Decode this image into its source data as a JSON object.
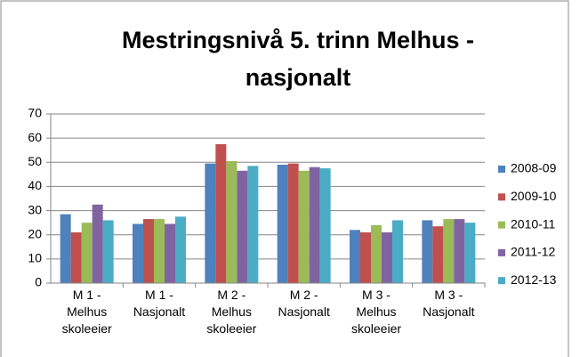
{
  "chart_data": {
    "type": "bar",
    "title": "Mestringsnivå 5. trinn Melhus - nasjonalt",
    "categories": [
      "M 1 - Melhus skoleeier",
      "M 1 - Nasjonalt",
      "M 2 - Melhus skoleeier",
      "M 2 - Nasjonalt",
      "M 3 - Melhus skoleeier",
      "M 3 - Nasjonalt"
    ],
    "series": [
      {
        "name": "2008-09",
        "color": "#4f81bd",
        "values": [
          28.5,
          24.5,
          49.5,
          49,
          22,
          26
        ]
      },
      {
        "name": "2009-10",
        "color": "#c0504d",
        "values": [
          21,
          26.5,
          57.5,
          49.5,
          21,
          23.5
        ]
      },
      {
        "name": "2010-11",
        "color": "#9bbb59",
        "values": [
          25,
          26.5,
          50.5,
          46.5,
          24,
          26.5
        ]
      },
      {
        "name": "2011-12",
        "color": "#8064a2",
        "values": [
          32.5,
          24.5,
          46.5,
          48,
          21,
          26.5
        ]
      },
      {
        "name": "2012-13",
        "color": "#4bacc6",
        "values": [
          26,
          27.5,
          48.5,
          47.5,
          26,
          25
        ]
      }
    ],
    "ylim": [
      0,
      70
    ],
    "yticks": [
      0,
      10,
      20,
      30,
      40,
      50,
      60,
      70
    ],
    "grid": true,
    "legend": "right"
  }
}
